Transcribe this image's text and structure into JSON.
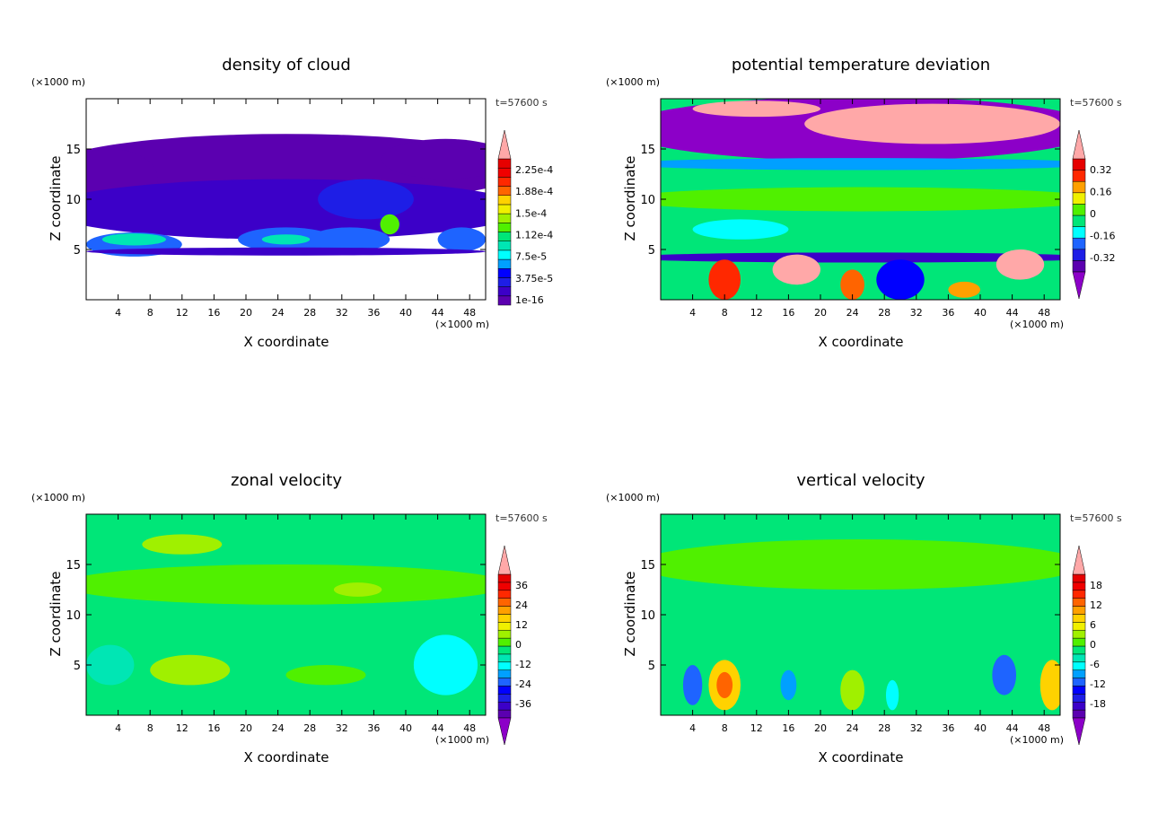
{
  "chart_data": [
    {
      "type": "heatmap",
      "title": "density of cloud",
      "xlabel": "X coordinate",
      "ylabel": "Z coordinate",
      "x_unit": "(×1000 m)",
      "y_unit": "(×1000 m)",
      "time": "t=57600 s",
      "xlim": [
        0,
        50
      ],
      "ylim": [
        0,
        20
      ],
      "xticks": [
        "4",
        "8",
        "12",
        "16",
        "20",
        "24",
        "28",
        "32",
        "36",
        "40",
        "44",
        "48"
      ],
      "yticks": [
        "5",
        "10",
        "15"
      ],
      "colorbar_labels": [
        "2.25e-4",
        "1.88e-4",
        "1.5e-4",
        "1.12e-4",
        "7.5e-5",
        "3.75e-5",
        "1e-16"
      ],
      "colorbar_segments": 16,
      "overflow_top": true,
      "overflow_bottom": false,
      "background": "#ffffff",
      "features": [
        {
          "x": 25,
          "z": 13,
          "rx": 30,
          "rz": 3.5,
          "color": "#5b00b0"
        },
        {
          "x": 3,
          "z": 12,
          "rx": 6,
          "rz": 3,
          "color": "#5b00b0"
        },
        {
          "x": 45,
          "z": 14,
          "rx": 8,
          "rz": 2,
          "color": "#5b00b0"
        },
        {
          "x": 25,
          "z": 9,
          "rx": 30,
          "rz": 3,
          "color": "#3c00c8"
        },
        {
          "x": 35,
          "z": 10,
          "rx": 6,
          "rz": 2,
          "color": "#1e1ee6"
        },
        {
          "x": 6,
          "z": 5.5,
          "rx": 6,
          "rz": 1.2,
          "color": "#1e64ff"
        },
        {
          "x": 25,
          "z": 6,
          "rx": 6,
          "rz": 1.2,
          "color": "#1e64ff"
        },
        {
          "x": 33,
          "z": 6,
          "rx": 5,
          "rz": 1.2,
          "color": "#1e64ff"
        },
        {
          "x": 47,
          "z": 6,
          "rx": 3,
          "rz": 1.2,
          "color": "#1e64ff"
        },
        {
          "x": 6,
          "z": 6,
          "rx": 4,
          "rz": 0.6,
          "color": "#00e6b4"
        },
        {
          "x": 38,
          "z": 7.5,
          "rx": 1.2,
          "rz": 1,
          "color": "#50f000"
        },
        {
          "x": 25,
          "z": 6,
          "rx": 3,
          "rz": 0.5,
          "color": "#00e6b4"
        },
        {
          "x": 25,
          "z": 4.8,
          "rx": 25,
          "rz": 0.4,
          "color": "#3c00c8"
        }
      ]
    },
    {
      "type": "heatmap",
      "title": "potential temperature deviation",
      "xlabel": "X coordinate",
      "ylabel": "Z coordinate",
      "x_unit": "(×1000 m)",
      "y_unit": "(×1000 m)",
      "time": "t=57600 s",
      "xlim": [
        0,
        50
      ],
      "ylim": [
        0,
        20
      ],
      "xticks": [
        "4",
        "8",
        "12",
        "16",
        "20",
        "24",
        "28",
        "32",
        "36",
        "40",
        "44",
        "48"
      ],
      "yticks": [
        "5",
        "10",
        "15"
      ],
      "colorbar_labels": [
        "0.32",
        "0.16",
        "0",
        "-0.16",
        "-0.32"
      ],
      "colorbar_segments": 10,
      "overflow_top": true,
      "overflow_bottom": true,
      "background": "#00e678",
      "features": [
        {
          "x": 25,
          "z": 17,
          "rx": 30,
          "rz": 3.2,
          "color": "#8c00c8"
        },
        {
          "x": 34,
          "z": 17.5,
          "rx": 16,
          "rz": 2,
          "color": "#ffa8a8"
        },
        {
          "x": 12,
          "z": 19,
          "rx": 8,
          "rz": 0.8,
          "color": "#ffa8a8"
        },
        {
          "x": 25,
          "z": 13.5,
          "rx": 30,
          "rz": 0.6,
          "color": "#00a0ff"
        },
        {
          "x": 25,
          "z": 10,
          "rx": 30,
          "rz": 1.2,
          "color": "#50f000"
        },
        {
          "x": 10,
          "z": 7,
          "rx": 6,
          "rz": 1,
          "color": "#00ffff"
        },
        {
          "x": 25,
          "z": 4.2,
          "rx": 30,
          "rz": 0.5,
          "color": "#3c00c8"
        },
        {
          "x": 8,
          "z": 2,
          "rx": 2,
          "rz": 2,
          "color": "#ff2800"
        },
        {
          "x": 24,
          "z": 1.5,
          "rx": 1.5,
          "rz": 1.5,
          "color": "#ff6400"
        },
        {
          "x": 38,
          "z": 1,
          "rx": 2,
          "rz": 0.8,
          "color": "#ffa000"
        },
        {
          "x": 17,
          "z": 3,
          "rx": 3,
          "rz": 1.5,
          "color": "#ffa8a8"
        },
        {
          "x": 45,
          "z": 3.5,
          "rx": 3,
          "rz": 1.5,
          "color": "#ffa8a8"
        },
        {
          "x": 30,
          "z": 2,
          "rx": 3,
          "rz": 2,
          "color": "#0000ff"
        }
      ]
    },
    {
      "type": "heatmap",
      "title": "zonal velocity",
      "xlabel": "X coordinate",
      "ylabel": "Z coordinate",
      "x_unit": "(×1000 m)",
      "y_unit": "(×1000 m)",
      "time": "t=57600 s",
      "xlim": [
        0,
        50
      ],
      "ylim": [
        0,
        20
      ],
      "xticks": [
        "4",
        "8",
        "12",
        "16",
        "20",
        "24",
        "28",
        "32",
        "36",
        "40",
        "44",
        "48"
      ],
      "yticks": [
        "5",
        "10",
        "15"
      ],
      "colorbar_labels": [
        "36",
        "24",
        "12",
        "0",
        "-12",
        "-24",
        "-36"
      ],
      "colorbar_segments": 18,
      "overflow_top": true,
      "overflow_bottom": true,
      "background": "#00e678",
      "features": [
        {
          "x": 25,
          "z": 13,
          "rx": 28,
          "rz": 2,
          "color": "#50f000"
        },
        {
          "x": 12,
          "z": 17,
          "rx": 5,
          "rz": 1,
          "color": "#a0f000"
        },
        {
          "x": 13,
          "z": 4.5,
          "rx": 5,
          "rz": 1.5,
          "color": "#a0f000"
        },
        {
          "x": 45,
          "z": 5,
          "rx": 4,
          "rz": 3,
          "color": "#00ffff"
        },
        {
          "x": 3,
          "z": 5,
          "rx": 3,
          "rz": 2,
          "color": "#00e6b4"
        },
        {
          "x": 30,
          "z": 4,
          "rx": 5,
          "rz": 1,
          "color": "#50f000"
        },
        {
          "x": 34,
          "z": 12.5,
          "rx": 3,
          "rz": 0.7,
          "color": "#a0f000"
        }
      ]
    },
    {
      "type": "heatmap",
      "title": "vertical velocity",
      "xlabel": "X coordinate",
      "ylabel": "Z coordinate",
      "x_unit": "(×1000 m)",
      "y_unit": "(×1000 m)",
      "time": "t=57600 s",
      "xlim": [
        0,
        50
      ],
      "ylim": [
        0,
        20
      ],
      "xticks": [
        "4",
        "8",
        "12",
        "16",
        "20",
        "24",
        "28",
        "32",
        "36",
        "40",
        "44",
        "48"
      ],
      "yticks": [
        "5",
        "10",
        "15"
      ],
      "colorbar_labels": [
        "18",
        "12",
        "6",
        "0",
        "-6",
        "-12",
        "-18"
      ],
      "colorbar_segments": 18,
      "overflow_top": true,
      "overflow_bottom": true,
      "background": "#00e678",
      "features": [
        {
          "x": 25,
          "z": 15,
          "rx": 28,
          "rz": 2.5,
          "color": "#50f000"
        },
        {
          "x": 8,
          "z": 3,
          "rx": 2,
          "rz": 2.5,
          "color": "#ffd200"
        },
        {
          "x": 8,
          "z": 3,
          "rx": 1,
          "rz": 1.3,
          "color": "#ff6400"
        },
        {
          "x": 49,
          "z": 3,
          "rx": 1.5,
          "rz": 2.5,
          "color": "#ffd200"
        },
        {
          "x": 4,
          "z": 3,
          "rx": 1.2,
          "rz": 2,
          "color": "#1e64ff"
        },
        {
          "x": 43,
          "z": 4,
          "rx": 1.5,
          "rz": 2,
          "color": "#1e64ff"
        },
        {
          "x": 16,
          "z": 3,
          "rx": 1,
          "rz": 1.5,
          "color": "#00a0ff"
        },
        {
          "x": 24,
          "z": 2.5,
          "rx": 1.5,
          "rz": 2,
          "color": "#a0f000"
        },
        {
          "x": 29,
          "z": 2,
          "rx": 0.8,
          "rz": 1.5,
          "color": "#00ffff"
        }
      ]
    }
  ],
  "palette": [
    "#5b00b0",
    "#3c00c8",
    "#1e1ee6",
    "#0000ff",
    "#1e64ff",
    "#00a0ff",
    "#00ffff",
    "#00e6b4",
    "#00e678",
    "#50f000",
    "#a0f000",
    "#f0f000",
    "#ffd200",
    "#ffa000",
    "#ff6400",
    "#ff2800",
    "#f00000",
    "#e60000"
  ],
  "overflow_colors": {
    "top": "#ffa8a8",
    "bottom": "#8c00c8"
  }
}
